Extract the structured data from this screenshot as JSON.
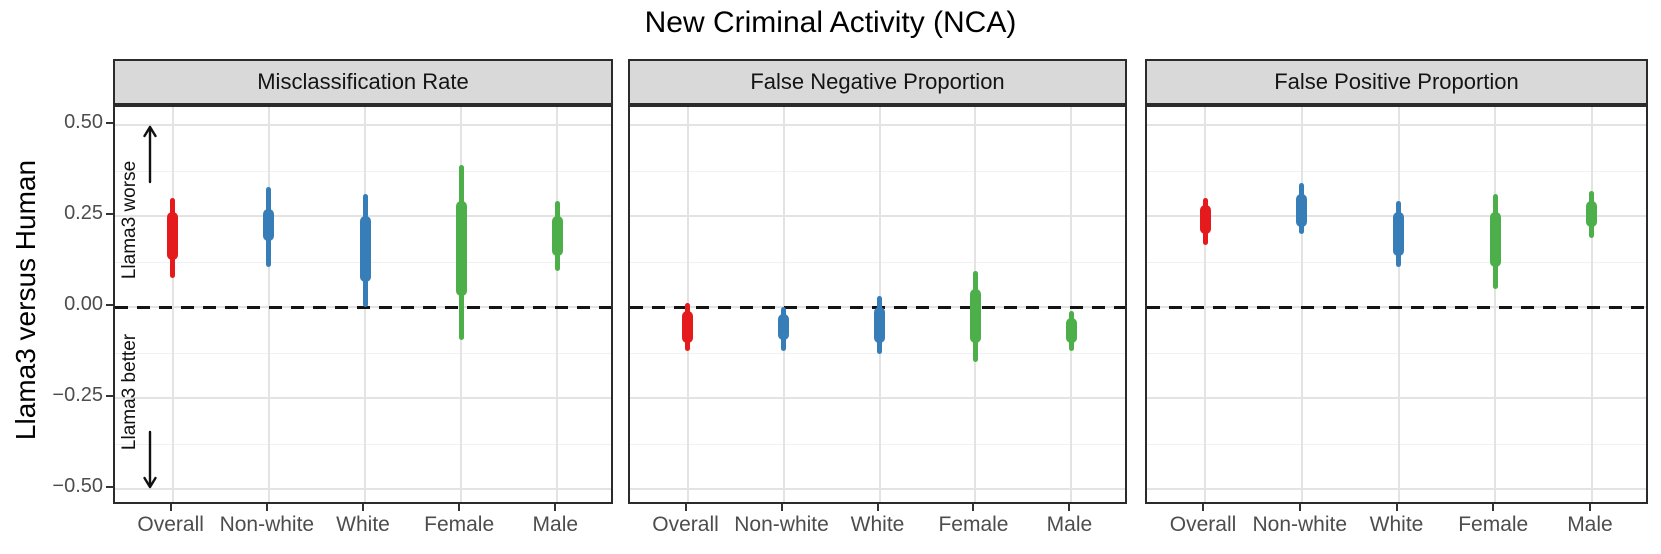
{
  "title": "New Criminal Activity (NCA)",
  "y_axis": {
    "title": "Llama3 versus Human",
    "ticks": [
      {
        "value": 0.5,
        "label": "0.50"
      },
      {
        "value": 0.25,
        "label": "0.25"
      },
      {
        "value": 0.0,
        "label": "0.00"
      },
      {
        "value": -0.25,
        "label": "−0.25"
      },
      {
        "value": -0.5,
        "label": "−0.50"
      }
    ]
  },
  "annotations": {
    "worse": "Llama3 worse",
    "better": "Llama3 better"
  },
  "colors": {
    "red": "#E41A1C",
    "blue": "#377EB8",
    "green": "#4DAF4A",
    "strip_background": "#D9D9D9",
    "panel_border": "#2B2B2B",
    "grid_major": "#E3E3E3",
    "grid_minor": "#F1F1F1",
    "zero_line": "#141414"
  },
  "chart_data": {
    "type": "interval",
    "title": "New Criminal Activity (NCA)",
    "ylabel": "Llama3 versus Human",
    "ylim": [
      -0.55,
      0.55
    ],
    "grid": true,
    "zero_reference_line": 0,
    "categories": [
      "Overall",
      "Non-white",
      "White",
      "Female",
      "Male"
    ],
    "category_colors": [
      "#E41A1C",
      "#377EB8",
      "#377EB8",
      "#4DAF4A",
      "#4DAF4A"
    ],
    "major_y_gridlines": [
      0.5,
      0.25,
      0,
      -0.25,
      -0.5
    ],
    "minor_y_gridlines": [
      0.375,
      0.125,
      -0.125,
      -0.375
    ],
    "panels": [
      {
        "label": "Misclassification Rate",
        "intervals": [
          {
            "category": "Overall",
            "outer": [
              0.08,
              0.3
            ],
            "inner": [
              0.13,
              0.26
            ]
          },
          {
            "category": "Non-white",
            "outer": [
              0.11,
              0.33
            ],
            "inner": [
              0.18,
              0.27
            ]
          },
          {
            "category": "White",
            "outer": [
              0.0,
              0.31
            ],
            "inner": [
              0.07,
              0.25
            ]
          },
          {
            "category": "Female",
            "outer": [
              -0.09,
              0.39
            ],
            "inner": [
              0.03,
              0.29
            ]
          },
          {
            "category": "Male",
            "outer": [
              0.1,
              0.29
            ],
            "inner": [
              0.14,
              0.25
            ]
          }
        ]
      },
      {
        "label": "False Negative Proportion",
        "intervals": [
          {
            "category": "Overall",
            "outer": [
              -0.12,
              0.01
            ],
            "inner": [
              -0.1,
              -0.01
            ]
          },
          {
            "category": "Non-white",
            "outer": [
              -0.12,
              0.0
            ],
            "inner": [
              -0.09,
              -0.02
            ]
          },
          {
            "category": "White",
            "outer": [
              -0.13,
              0.03
            ],
            "inner": [
              -0.1,
              0.0
            ]
          },
          {
            "category": "Female",
            "outer": [
              -0.15,
              0.1
            ],
            "inner": [
              -0.1,
              0.05
            ]
          },
          {
            "category": "Male",
            "outer": [
              -0.12,
              -0.01
            ],
            "inner": [
              -0.1,
              -0.03
            ]
          }
        ]
      },
      {
        "label": "False Positive Proportion",
        "intervals": [
          {
            "category": "Overall",
            "outer": [
              0.17,
              0.3
            ],
            "inner": [
              0.2,
              0.28
            ]
          },
          {
            "category": "Non-white",
            "outer": [
              0.2,
              0.34
            ],
            "inner": [
              0.22,
              0.31
            ]
          },
          {
            "category": "White",
            "outer": [
              0.11,
              0.29
            ],
            "inner": [
              0.14,
              0.26
            ]
          },
          {
            "category": "Female",
            "outer": [
              0.05,
              0.31
            ],
            "inner": [
              0.11,
              0.26
            ]
          },
          {
            "category": "Male",
            "outer": [
              0.19,
              0.32
            ],
            "inner": [
              0.22,
              0.29
            ]
          }
        ]
      }
    ]
  }
}
